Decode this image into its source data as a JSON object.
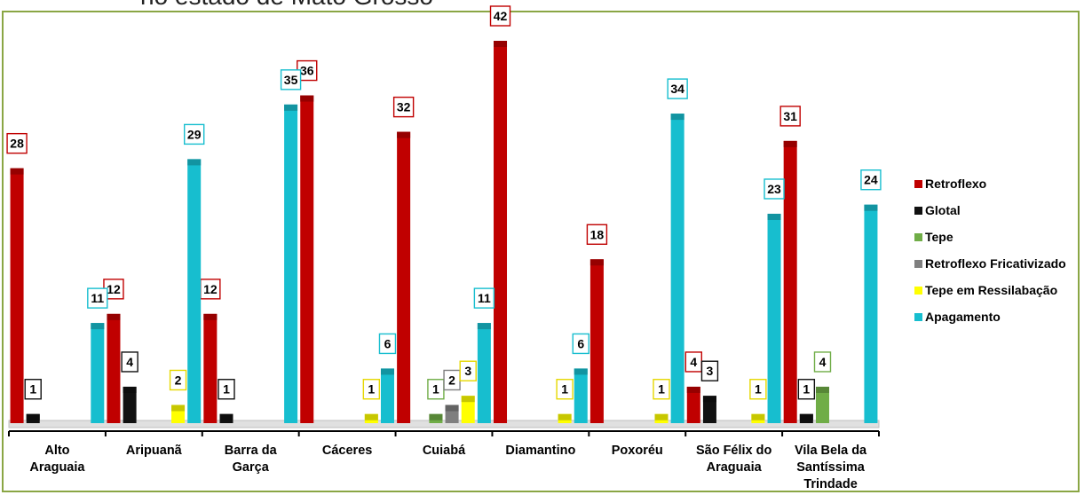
{
  "title_fragment": "no estado de Mato Grosso",
  "chart_data": {
    "type": "bar",
    "categories": [
      [
        "Alto",
        "Araguaia"
      ],
      [
        "Aripuanã"
      ],
      [
        "Barra da",
        "Garça"
      ],
      [
        "Cáceres"
      ],
      [
        "Cuiabá"
      ],
      [
        "Diamantino"
      ],
      [
        "Poxoréu"
      ],
      [
        "São Félix do",
        "Araguaia"
      ],
      [
        "Vila Bela da",
        "Santíssima",
        "Trindade"
      ]
    ],
    "series": [
      {
        "name": "Retroflexo",
        "color": "#c00000",
        "values": [
          28,
          12,
          12,
          36,
          32,
          42,
          18,
          4,
          31
        ]
      },
      {
        "name": "Glotal",
        "color": "#111111",
        "values": [
          1,
          4,
          1,
          0,
          0,
          0,
          0,
          3,
          1
        ]
      },
      {
        "name": "Tepe",
        "color": "#70ad47",
        "values": [
          0,
          0,
          0,
          0,
          1,
          0,
          0,
          0,
          4
        ]
      },
      {
        "name": "Retroflexo Fricativizado",
        "color": "#7f7f7f",
        "values": [
          0,
          0,
          0,
          0,
          2,
          0,
          0,
          0,
          0
        ]
      },
      {
        "name": "Tepe em Ressilabação",
        "color": "#ffff00",
        "values": [
          0,
          2,
          0,
          1,
          3,
          1,
          1,
          1,
          0
        ]
      },
      {
        "name": "Apagamento",
        "color": "#17becf",
        "values": [
          11,
          29,
          35,
          6,
          11,
          6,
          34,
          23,
          24
        ]
      }
    ],
    "ylim": [
      0,
      42
    ],
    "legend_position": "right",
    "grid": false
  }
}
